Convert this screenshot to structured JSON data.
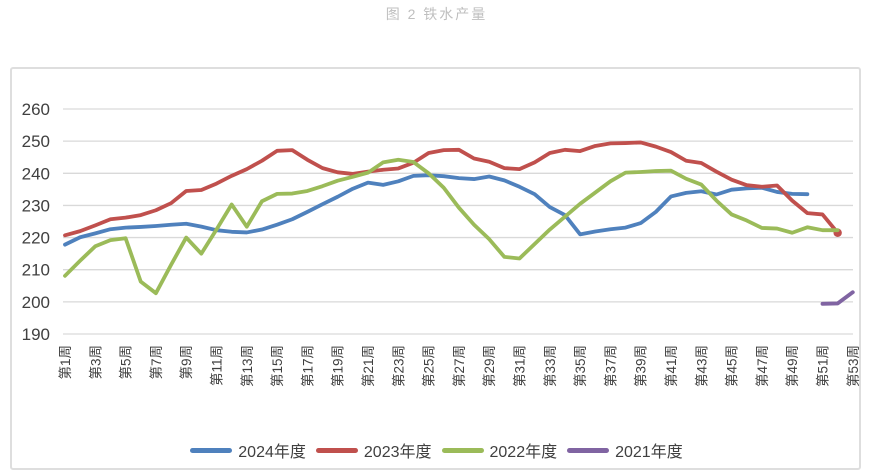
{
  "figure": {
    "title": "图 2 铁水产量"
  },
  "chart_data": {
    "type": "line",
    "title": "图 2 铁水产量",
    "xlabel": "",
    "ylabel": "",
    "x_axis": {
      "unit": "周",
      "weeks_total": 53,
      "tick_step": 2,
      "tick_labels": [
        "第1周",
        "第3周",
        "第5周",
        "第7周",
        "第9周",
        "第11周",
        "第13周",
        "第15周",
        "第17周",
        "第19周",
        "第21周",
        "第23周",
        "第25周",
        "第27周",
        "第29周",
        "第31周",
        "第33周",
        "第35周",
        "第37周",
        "第39周",
        "第41周",
        "第43周",
        "第45周",
        "第47周",
        "第49周",
        "第51周",
        "第53周"
      ]
    },
    "y_axis": {
      "min": 190,
      "max": 260,
      "ticks": [
        260,
        250,
        240,
        230,
        220,
        210,
        200,
        190
      ]
    },
    "grid": "horizontal",
    "legend_position": "bottom",
    "series": [
      {
        "name": "2024年度",
        "color": "#4F81BD",
        "start_week": 1,
        "end_marker": false,
        "values": [
          217.8,
          220.1,
          221.3,
          222.6,
          223.1,
          223.3,
          223.6,
          224.0,
          224.3,
          223.4,
          222.3,
          221.8,
          221.6,
          222.5,
          224.0,
          225.7,
          228.0,
          230.4,
          232.7,
          235.2,
          237.1,
          236.4,
          237.5,
          239.2,
          239.4,
          239.1,
          238.5,
          238.2,
          239.0,
          237.8,
          235.8,
          233.5,
          229.5,
          227.0,
          221.0,
          221.9,
          222.6,
          223.1,
          224.5,
          228.0,
          232.8,
          233.9,
          234.4,
          233.4,
          234.9,
          235.3,
          235.5,
          234.2,
          233.6,
          233.5
        ]
      },
      {
        "name": "2023年度",
        "color": "#C0504D",
        "start_week": 1,
        "end_marker": true,
        "values": [
          220.7,
          222.0,
          223.8,
          225.7,
          226.2,
          227.0,
          228.5,
          230.7,
          234.5,
          234.8,
          236.8,
          239.2,
          241.3,
          243.9,
          247.0,
          247.2,
          244.2,
          241.6,
          240.3,
          239.8,
          240.5,
          241.1,
          241.5,
          243.3,
          246.3,
          247.2,
          247.3,
          244.6,
          243.6,
          241.6,
          241.3,
          243.4,
          246.3,
          247.3,
          246.9,
          248.5,
          249.3,
          249.4,
          249.6,
          248.3,
          246.6,
          243.9,
          243.2,
          240.5,
          238.0,
          236.3,
          235.8,
          236.2,
          231.5,
          227.6,
          227.2,
          221.5
        ]
      },
      {
        "name": "2022年度",
        "color": "#9BBB59",
        "start_week": 1,
        "end_marker": false,
        "values": [
          208.1,
          212.8,
          217.3,
          219.2,
          219.8,
          206.3,
          202.7,
          211.5,
          220.0,
          215.0,
          222.5,
          230.3,
          223.4,
          231.3,
          233.6,
          233.7,
          234.5,
          236.0,
          237.7,
          238.9,
          240.2,
          243.4,
          244.2,
          243.5,
          240.0,
          235.5,
          229.3,
          224.0,
          219.5,
          214.0,
          213.5,
          218.0,
          222.5,
          226.5,
          230.5,
          234.0,
          237.5,
          240.2,
          240.4,
          240.7,
          240.8,
          238.3,
          236.5,
          231.5,
          227.2,
          225.3,
          223.0,
          222.8,
          221.5,
          223.2,
          222.3,
          222.3
        ]
      },
      {
        "name": "2021年度",
        "color": "#8064A2",
        "start_week": 51,
        "end_marker": false,
        "values": [
          199.4,
          199.5,
          203.0
        ]
      }
    ]
  }
}
